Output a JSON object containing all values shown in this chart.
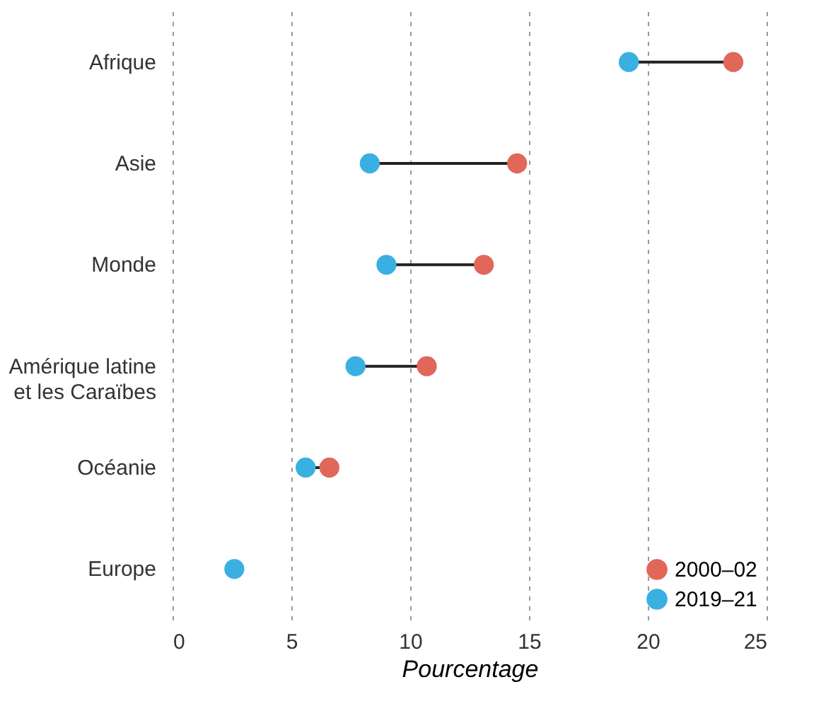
{
  "chart_data": {
    "type": "scatter",
    "xlabel": "Pourcentage",
    "categories": [
      "Afrique",
      "Asie",
      "Monde",
      "Amérique latine\net les Caraïbes",
      "Océanie",
      "Europe"
    ],
    "orientation": "horizontal",
    "series": [
      {
        "name": "2000–02",
        "color": "#e0675a",
        "values": [
          23.6,
          14.5,
          13.1,
          10.7,
          6.6,
          null
        ]
      },
      {
        "name": "2019–21",
        "color": "#3ab0e2",
        "values": [
          19.2,
          8.3,
          9.0,
          7.7,
          5.6,
          2.6
        ]
      }
    ],
    "xlim": [
      0,
      25
    ],
    "xticks": [
      0,
      5,
      10,
      15,
      20,
      25
    ],
    "grid": "x",
    "legend": "bottom right",
    "marker": "circle"
  }
}
